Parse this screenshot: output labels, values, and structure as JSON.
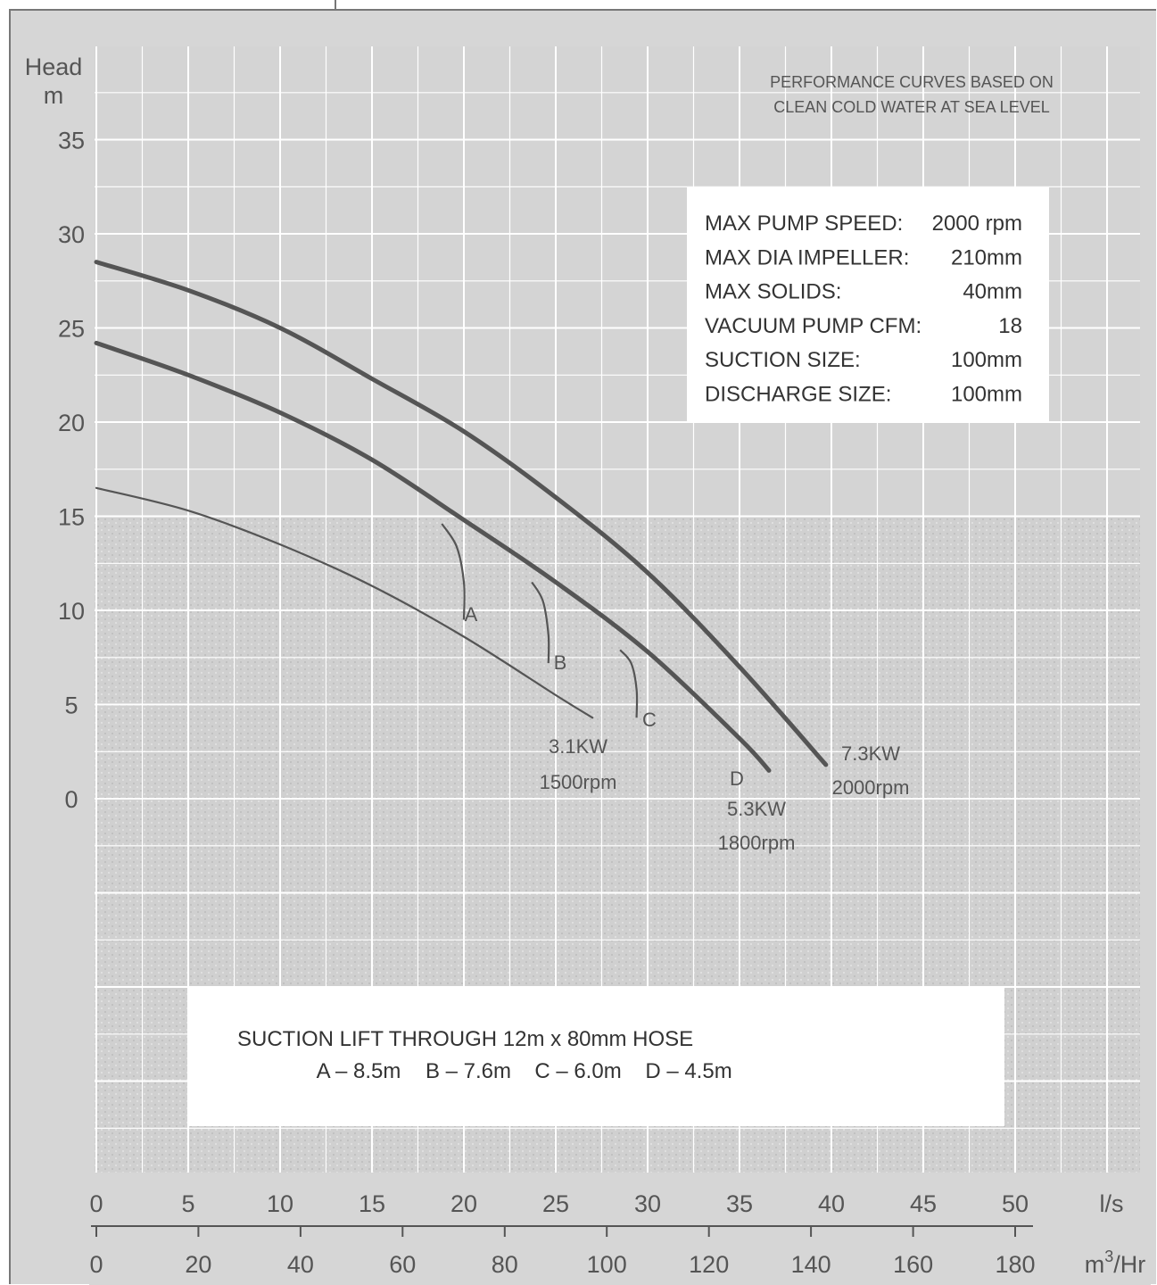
{
  "chart_data": {
    "type": "line",
    "ylabel": "Head",
    "yunit": "m",
    "ylim": [
      0,
      38
    ],
    "yticks": [
      0,
      5,
      10,
      15,
      20,
      25,
      30,
      35
    ],
    "x_primary_unit": "l/s",
    "xlim": [
      0,
      52
    ],
    "xticks_ls": [
      0,
      5,
      10,
      15,
      20,
      25,
      30,
      35,
      40,
      45,
      50
    ],
    "x_secondary_unit": "m3/Hr",
    "xticks_m3hr": [
      0,
      20,
      40,
      60,
      80,
      100,
      120,
      140,
      160,
      180
    ],
    "grid": true,
    "series": [
      {
        "name": "7.3KW 2000rpm",
        "line1": "7.3KW",
        "line2": "2000rpm",
        "x": [
          0,
          5,
          10,
          15,
          20,
          25,
          30,
          35,
          39.7
        ],
        "y": [
          28.5,
          27.0,
          25.0,
          22.3,
          19.5,
          16.0,
          12.0,
          7.0,
          1.8
        ]
      },
      {
        "name": "5.3KW 1800rpm",
        "line1": "5.3KW",
        "line2": "1800rpm",
        "x": [
          0,
          5,
          10,
          15,
          20,
          25,
          30,
          35,
          36.6
        ],
        "y": [
          24.2,
          22.5,
          20.5,
          18.0,
          14.8,
          11.5,
          7.8,
          3.2,
          1.5
        ]
      },
      {
        "name": "3.1KW 1500rpm",
        "line1": "3.1KW",
        "line2": "1500rpm",
        "x": [
          0,
          5,
          10,
          15,
          20,
          25,
          27.0
        ],
        "y": [
          16.5,
          15.3,
          13.5,
          11.3,
          8.6,
          5.5,
          4.3
        ]
      }
    ],
    "suction_limits": [
      {
        "label": "A",
        "x": [
          18.8,
          19.6,
          20.0,
          20.0
        ],
        "y": [
          14.6,
          13.4,
          11.5,
          9.5
        ]
      },
      {
        "label": "B",
        "x": [
          23.7,
          24.3,
          24.6,
          24.6
        ],
        "y": [
          11.5,
          10.5,
          8.7,
          7.2
        ]
      },
      {
        "label": "C",
        "x": [
          28.5,
          29.1,
          29.4,
          29.4
        ],
        "y": [
          7.9,
          7.2,
          5.8,
          4.3
        ]
      },
      {
        "label": "D",
        "x": [],
        "y": []
      }
    ]
  },
  "axis": {
    "ylabel_line1": "Head",
    "ylabel_line2": "m",
    "x_unit_ls": "l/s",
    "x_unit_m3": "m",
    "x_unit_sup": "3",
    "x_unit_hr": "/Hr"
  },
  "note": {
    "line1": "PERFORMANCE CURVES BASED ON",
    "line2": "CLEAN COLD WATER AT SEA LEVEL"
  },
  "specs": [
    {
      "label": "MAX PUMP SPEED:",
      "value": "2000 rpm"
    },
    {
      "label": "MAX DIA IMPELLER:",
      "value": "210mm"
    },
    {
      "label": "MAX SOLIDS:",
      "value": "40mm"
    },
    {
      "label": "VACUUM PUMP CFM:",
      "value": "18"
    },
    {
      "label": "SUCTION SIZE:",
      "value": "100mm"
    },
    {
      "label": "DISCHARGE SIZE:",
      "value": "100mm"
    }
  ],
  "suction": {
    "title": "SUCTION LIFT THROUGH 12m x 80mm HOSE",
    "items": [
      "A – 8.5m",
      "B – 7.6m",
      "C – 6.0m",
      "D – 4.5m"
    ]
  },
  "colors": {
    "background": "#d6d6d6",
    "grid": "#ffffff",
    "curve": "#555555",
    "text": "#555555"
  }
}
